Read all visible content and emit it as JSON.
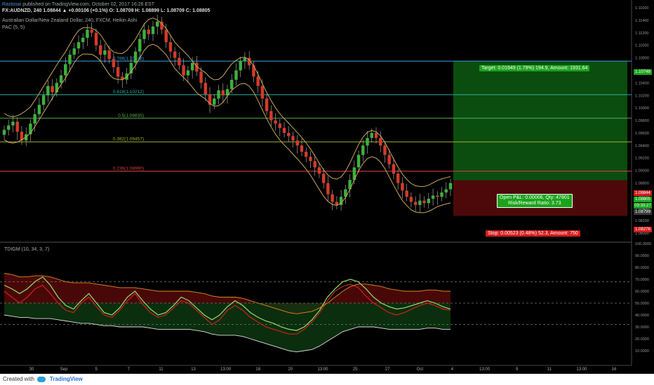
{
  "header": {
    "publisher": "Rastosai",
    "published_text": "published on TradingView.com, October 02, 2017 16:26 EST",
    "symbol_line": "FX:AUDNZD, 240  1.08844 ▲ +0.00106 (+0.1%) O: 1.08709 H: 1.08899 L: 1.08709 C: 1.08805",
    "instrument": "Australian Dollar/New Zealand Dollar, 240, FXCM, Heikin Ashi",
    "indicator_main": "PAC (5, 5)"
  },
  "oscillator": {
    "title": "TDIGM (10, 34, 3, 7)"
  },
  "footer": {
    "created_with": "Created with",
    "brand": "TradingView"
  },
  "trade": {
    "target_text": "Target: 0.01949 (1.79%) 194.9, Amount: 1931.64",
    "stop_text": "Stop: 0.00523 (0.48%) 52.3, Amount: 750",
    "open_pl_text": "Open P&L: 0.00006, Qty: 47801",
    "rr_text": "Risk/Reward Ratio: 3.73"
  },
  "price_labels": {
    "target": "1.10748",
    "entry": "1.08844",
    "current": "1.08805",
    "countdown": "03:33:27",
    "low": "1.08799",
    "stop": "1.08276"
  },
  "colors": {
    "up": "#3bb33b",
    "down": "#d63a2a",
    "pac": "#c8a85a",
    "target_fill": "#0d5a12",
    "stop_fill": "#5a0a0a"
  },
  "chart_data": [
    {
      "type": "candlestick",
      "title": "Australian Dollar/New Zealand Dollar, 240, FXCM, Heikin Ashi",
      "ylim": [
        1.079,
        1.115
      ],
      "y_ticks": [
        "1.11600",
        "1.11400",
        "1.11200",
        "1.11000",
        "1.10800",
        "1.10600",
        "1.10400",
        "1.10200",
        "1.10000",
        "1.09800",
        "1.09600",
        "1.09400",
        "1.09200",
        "1.09000",
        "1.08800",
        "1.08600",
        "1.08400",
        "1.08200",
        "1.08000"
      ],
      "x_ticks": [
        "30",
        "Sep",
        "5",
        "7",
        "11",
        "13",
        "13:00",
        "18",
        "20",
        "13:00",
        "25",
        "27",
        "Oct",
        "4",
        "13:00",
        "9",
        "11",
        "13:00",
        "16"
      ],
      "closes": [
        1.0965,
        1.0972,
        1.0978,
        1.0962,
        1.0948,
        1.0958,
        1.0975,
        1.099,
        1.1005,
        1.102,
        1.1035,
        1.1025,
        1.104,
        1.1052,
        1.107,
        1.1085,
        1.1095,
        1.1105,
        1.1112,
        1.1125,
        1.112,
        1.11,
        1.1085,
        1.1092,
        1.1078,
        1.1065,
        1.105,
        1.1045,
        1.1055,
        1.1072,
        1.109,
        1.111,
        1.1125,
        1.1118,
        1.113,
        1.1138,
        1.1125,
        1.1105,
        1.109,
        1.108,
        1.1068,
        1.1052,
        1.106,
        1.1072,
        1.1058,
        1.104,
        1.1022,
        1.1005,
        1.1015,
        1.1028,
        1.102,
        1.103,
        1.1045,
        1.106,
        1.1075,
        1.108,
        1.1068,
        1.105,
        1.1035,
        1.1015,
        1.0995,
        1.098,
        1.0975,
        1.0968,
        1.096,
        1.0955,
        1.0948,
        1.094,
        1.093,
        1.0922,
        1.0915,
        1.0905,
        1.0895,
        1.088,
        1.0862,
        1.085,
        1.0845,
        1.0858,
        1.087,
        1.0885,
        1.0905,
        1.0925,
        1.094,
        1.0952,
        1.096,
        1.0952,
        1.094,
        1.0925,
        1.091,
        1.0895,
        1.088,
        1.0868,
        1.0858,
        1.085,
        1.0845,
        1.0852,
        1.0848,
        1.0855,
        1.086,
        1.0858,
        1.0865,
        1.087,
        1.088
      ],
      "fib_levels": [
        {
          "label": "0.786(1.10748)",
          "value": 1.10748,
          "color": "#3a9ad9"
        },
        {
          "label": "0.618(1.10212)",
          "value": 1.10212,
          "color": "#2ab0a0"
        },
        {
          "label": "0.5(1.09835)",
          "value": 1.09835,
          "color": "#5ab050"
        },
        {
          "label": "0.382(1.09457)",
          "value": 1.09457,
          "color": "#a0b030"
        },
        {
          "label": "0.236(1.08990)",
          "value": 1.0899,
          "color": "#d04040"
        }
      ]
    },
    {
      "type": "line",
      "title": "TDIGM (10, 34, 3, 7)",
      "ylim": [
        0,
        100
      ],
      "y_ticks": [
        "100.0000",
        "90.0000",
        "80.0000",
        "70.0000",
        "60.0000",
        "50.0000",
        "40.0000",
        "30.0000",
        "20.0000",
        "10.0000"
      ],
      "levels": [
        68,
        50,
        32
      ],
      "series": [
        {
          "values": [
            65,
            62,
            58,
            62,
            68,
            72,
            65,
            55,
            48,
            45,
            52,
            58,
            50,
            42,
            40,
            46,
            55,
            60,
            52,
            45,
            40,
            42,
            48,
            55,
            52,
            46,
            40,
            36,
            40,
            47,
            52,
            48,
            42,
            38,
            35,
            33,
            30,
            28,
            27,
            30,
            36,
            44,
            55,
            62,
            68,
            70,
            68,
            62,
            55,
            50,
            47,
            45,
            46,
            48,
            50,
            52,
            50,
            47,
            45
          ]
        },
        {
          "values": [
            60,
            55,
            50,
            55,
            62,
            65,
            58,
            50,
            44,
            42,
            50,
            55,
            47,
            40,
            38,
            44,
            52,
            58,
            49,
            42,
            38,
            40,
            46,
            52,
            50,
            44,
            38,
            32,
            36,
            44,
            48,
            44,
            38,
            34,
            30,
            28,
            26,
            24,
            24,
            28,
            34,
            42,
            52,
            60,
            64,
            66,
            63,
            56,
            50,
            46,
            42,
            40,
            42,
            45,
            48,
            50,
            48,
            45,
            44
          ]
        },
        {
          "values": [
            75,
            74,
            72,
            72,
            73,
            73,
            72,
            70,
            68,
            67,
            67,
            67,
            66,
            65,
            64,
            63,
            63,
            63,
            62,
            61,
            60,
            60,
            60,
            60,
            60,
            59,
            58,
            56,
            55,
            55,
            55,
            54,
            52,
            50,
            48,
            46,
            44,
            42,
            41,
            42,
            43,
            46,
            50,
            55,
            60,
            64,
            66,
            66,
            65,
            64,
            62,
            61,
            60,
            60,
            60,
            61,
            61,
            60,
            60
          ]
        },
        {
          "values": [
            40,
            39,
            38,
            38,
            37,
            37,
            37,
            36,
            35,
            34,
            33,
            33,
            32,
            31,
            31,
            30,
            30,
            30,
            30,
            29,
            28,
            28,
            28,
            28,
            28,
            27,
            26,
            24,
            23,
            23,
            23,
            22,
            20,
            18,
            16,
            14,
            12,
            10,
            9,
            10,
            11,
            14,
            18,
            22,
            26,
            28,
            30,
            30,
            30,
            29,
            28,
            28,
            28,
            28,
            28,
            29,
            29,
            28,
            28
          ]
        }
      ]
    }
  ]
}
